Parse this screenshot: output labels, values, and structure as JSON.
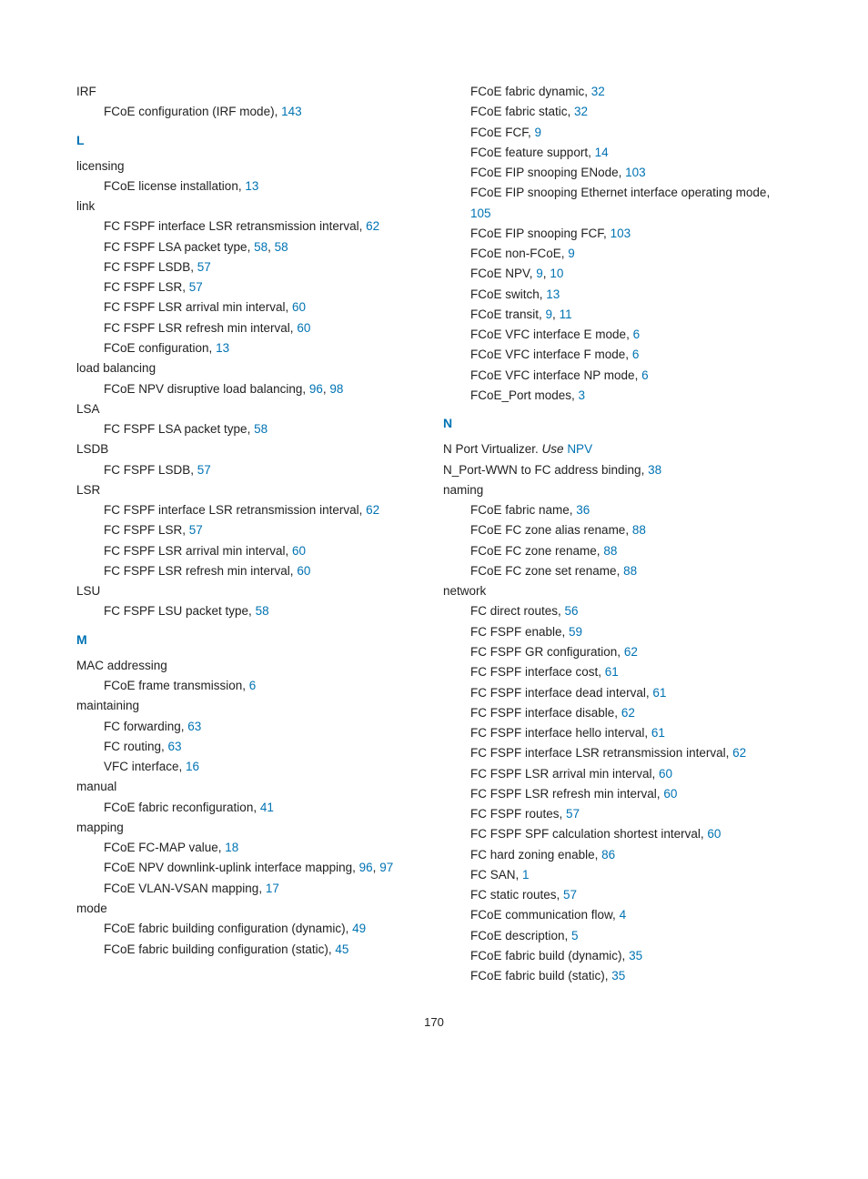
{
  "page_number": "170",
  "link_color": "#0073b3",
  "left": [
    {
      "t": "term",
      "text": "IRF"
    },
    {
      "t": "sub",
      "text": "FCoE configuration (IRF mode), ",
      "links": [
        "143"
      ]
    },
    {
      "t": "letter",
      "text": "L"
    },
    {
      "t": "term",
      "text": "licensing"
    },
    {
      "t": "sub",
      "text": "FCoE license installation, ",
      "links": [
        "13"
      ]
    },
    {
      "t": "term",
      "text": "link"
    },
    {
      "t": "sub",
      "text": "FC FSPF interface LSR retransmission interval, ",
      "links": [
        "62"
      ]
    },
    {
      "t": "sub",
      "text": "FC FSPF LSA packet type, ",
      "links": [
        "58",
        "58"
      ]
    },
    {
      "t": "sub",
      "text": "FC FSPF LSDB, ",
      "links": [
        "57"
      ]
    },
    {
      "t": "sub",
      "text": "FC FSPF LSR, ",
      "links": [
        "57"
      ]
    },
    {
      "t": "sub",
      "text": "FC FSPF LSR arrival min interval, ",
      "links": [
        "60"
      ]
    },
    {
      "t": "sub",
      "text": "FC FSPF LSR refresh min interval, ",
      "links": [
        "60"
      ]
    },
    {
      "t": "sub",
      "text": "FCoE configuration, ",
      "links": [
        "13"
      ]
    },
    {
      "t": "term",
      "text": "load balancing"
    },
    {
      "t": "sub",
      "text": "FCoE NPV disruptive load balancing, ",
      "links": [
        "96",
        "98"
      ]
    },
    {
      "t": "term",
      "text": "LSA"
    },
    {
      "t": "sub",
      "text": "FC FSPF LSA packet type, ",
      "links": [
        "58"
      ]
    },
    {
      "t": "term",
      "text": "LSDB"
    },
    {
      "t": "sub",
      "text": "FC FSPF LSDB, ",
      "links": [
        "57"
      ]
    },
    {
      "t": "term",
      "text": "LSR"
    },
    {
      "t": "sub",
      "text": "FC FSPF interface LSR retransmission interval, ",
      "links": [
        "62"
      ]
    },
    {
      "t": "sub",
      "text": "FC FSPF LSR, ",
      "links": [
        "57"
      ]
    },
    {
      "t": "sub",
      "text": "FC FSPF LSR arrival min interval, ",
      "links": [
        "60"
      ]
    },
    {
      "t": "sub",
      "text": "FC FSPF LSR refresh min interval, ",
      "links": [
        "60"
      ]
    },
    {
      "t": "term",
      "text": "LSU"
    },
    {
      "t": "sub",
      "text": "FC FSPF LSU packet type, ",
      "links": [
        "58"
      ]
    },
    {
      "t": "letter",
      "text": "M"
    },
    {
      "t": "term",
      "text": "MAC addressing"
    },
    {
      "t": "sub",
      "text": "FCoE frame transmission, ",
      "links": [
        "6"
      ]
    },
    {
      "t": "term",
      "text": "maintaining"
    },
    {
      "t": "sub",
      "text": "FC forwarding, ",
      "links": [
        "63"
      ]
    },
    {
      "t": "sub",
      "text": "FC routing, ",
      "links": [
        "63"
      ]
    },
    {
      "t": "sub",
      "text": "VFC interface, ",
      "links": [
        "16"
      ]
    },
    {
      "t": "term",
      "text": "manual"
    },
    {
      "t": "sub",
      "text": "FCoE fabric reconfiguration, ",
      "links": [
        "41"
      ]
    },
    {
      "t": "term",
      "text": "mapping"
    },
    {
      "t": "sub",
      "text": "FCoE FC-MAP value, ",
      "links": [
        "18"
      ]
    },
    {
      "t": "sub",
      "text": "FCoE NPV downlink-uplink interface mapping, ",
      "links": [
        "96",
        "97"
      ]
    },
    {
      "t": "sub",
      "text": "FCoE VLAN-VSAN mapping, ",
      "links": [
        "17"
      ]
    },
    {
      "t": "term",
      "text": "mode"
    },
    {
      "t": "sub",
      "text": "FCoE fabric building configuration (dynamic), ",
      "links": [
        "49"
      ]
    },
    {
      "t": "sub",
      "text": "FCoE fabric building configuration (static), ",
      "links": [
        "45"
      ]
    }
  ],
  "right": [
    {
      "t": "sub",
      "text": "FCoE fabric dynamic, ",
      "links": [
        "32"
      ]
    },
    {
      "t": "sub",
      "text": "FCoE fabric static, ",
      "links": [
        "32"
      ]
    },
    {
      "t": "sub",
      "text": "FCoE FCF, ",
      "links": [
        "9"
      ]
    },
    {
      "t": "sub",
      "text": "FCoE feature support, ",
      "links": [
        "14"
      ]
    },
    {
      "t": "sub",
      "text": "FCoE FIP snooping ENode, ",
      "links": [
        "103"
      ]
    },
    {
      "t": "sub",
      "text": "FCoE FIP snooping Ethernet interface operating mode, ",
      "links": [
        "105"
      ]
    },
    {
      "t": "sub",
      "text": "FCoE FIP snooping FCF, ",
      "links": [
        "103"
      ]
    },
    {
      "t": "sub",
      "text": "FCoE non-FCoE, ",
      "links": [
        "9"
      ]
    },
    {
      "t": "sub",
      "text": "FCoE NPV, ",
      "links": [
        "9",
        "10"
      ]
    },
    {
      "t": "sub",
      "text": "FCoE switch, ",
      "links": [
        "13"
      ]
    },
    {
      "t": "sub",
      "text": "FCoE transit, ",
      "links": [
        "9",
        "11"
      ]
    },
    {
      "t": "sub",
      "text": "FCoE VFC interface E mode, ",
      "links": [
        "6"
      ]
    },
    {
      "t": "sub",
      "text": "FCoE VFC interface F mode, ",
      "links": [
        "6"
      ]
    },
    {
      "t": "sub",
      "text": "FCoE VFC interface NP mode, ",
      "links": [
        "6"
      ]
    },
    {
      "t": "sub",
      "text": "FCoE_Port modes, ",
      "links": [
        "3"
      ]
    },
    {
      "t": "letter",
      "text": "N"
    },
    {
      "t": "use",
      "pre": "N Port Virtualizer. ",
      "use": "Use ",
      "post": "NPV"
    },
    {
      "t": "term_link",
      "text": "N_Port-WWN to FC address binding, ",
      "links": [
        "38"
      ]
    },
    {
      "t": "term",
      "text": "naming"
    },
    {
      "t": "sub",
      "text": "FCoE fabric name, ",
      "links": [
        "36"
      ]
    },
    {
      "t": "sub",
      "text": "FCoE FC zone alias rename, ",
      "links": [
        "88"
      ]
    },
    {
      "t": "sub",
      "text": "FCoE FC zone rename, ",
      "links": [
        "88"
      ]
    },
    {
      "t": "sub",
      "text": "FCoE FC zone set rename, ",
      "links": [
        "88"
      ]
    },
    {
      "t": "term",
      "text": "network"
    },
    {
      "t": "sub",
      "text": "FC direct routes, ",
      "links": [
        "56"
      ]
    },
    {
      "t": "sub",
      "text": "FC FSPF enable, ",
      "links": [
        "59"
      ]
    },
    {
      "t": "sub",
      "text": "FC FSPF GR configuration, ",
      "links": [
        "62"
      ]
    },
    {
      "t": "sub",
      "text": "FC FSPF interface cost, ",
      "links": [
        "61"
      ]
    },
    {
      "t": "sub",
      "text": "FC FSPF interface dead interval, ",
      "links": [
        "61"
      ]
    },
    {
      "t": "sub",
      "text": "FC FSPF interface disable, ",
      "links": [
        "62"
      ]
    },
    {
      "t": "sub",
      "text": "FC FSPF interface hello interval, ",
      "links": [
        "61"
      ]
    },
    {
      "t": "sub",
      "text": "FC FSPF interface LSR retransmission interval, ",
      "links": [
        "62"
      ]
    },
    {
      "t": "sub",
      "text": "FC FSPF LSR arrival min interval, ",
      "links": [
        "60"
      ]
    },
    {
      "t": "sub",
      "text": "FC FSPF LSR refresh min interval, ",
      "links": [
        "60"
      ]
    },
    {
      "t": "sub",
      "text": "FC FSPF routes, ",
      "links": [
        "57"
      ]
    },
    {
      "t": "sub",
      "text": "FC FSPF SPF calculation shortest interval, ",
      "links": [
        "60"
      ]
    },
    {
      "t": "sub",
      "text": "FC hard zoning enable, ",
      "links": [
        "86"
      ]
    },
    {
      "t": "sub",
      "text": "FC SAN, ",
      "links": [
        "1"
      ]
    },
    {
      "t": "sub",
      "text": "FC static routes, ",
      "links": [
        "57"
      ]
    },
    {
      "t": "sub",
      "text": "FCoE communication flow, ",
      "links": [
        "4"
      ]
    },
    {
      "t": "sub",
      "text": "FCoE description, ",
      "links": [
        "5"
      ]
    },
    {
      "t": "sub",
      "text": "FCoE fabric build (dynamic), ",
      "links": [
        "35"
      ]
    },
    {
      "t": "sub",
      "text": "FCoE fabric build (static), ",
      "links": [
        "35"
      ]
    }
  ]
}
